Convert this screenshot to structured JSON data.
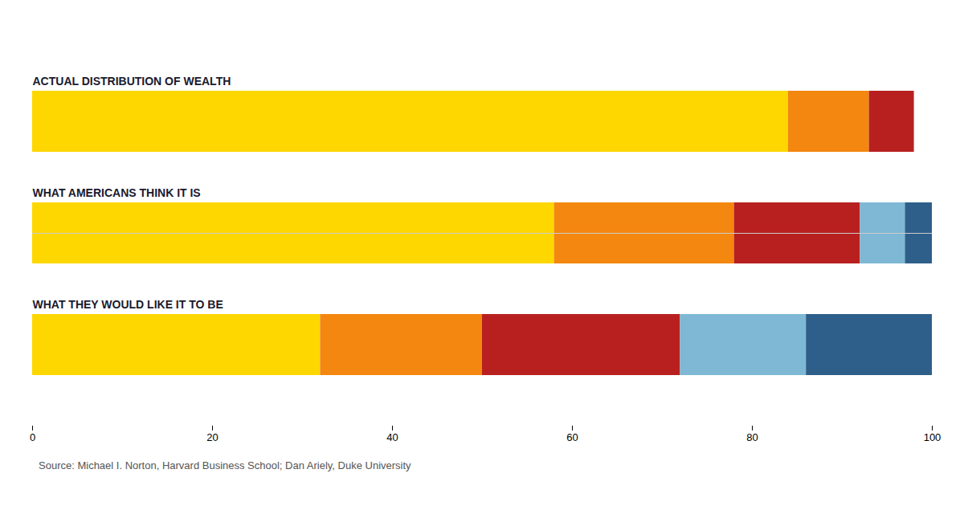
{
  "chart_data": {
    "type": "bar",
    "orientation": "horizontal",
    "stacked": true,
    "categories": [
      "ACTUAL DISTRIBUTION OF WEALTH",
      "WHAT AMERICANS THINK IT IS",
      "WHAT THEY WOULD LIKE IT TO BE"
    ],
    "series": [
      {
        "color": "#FFD700",
        "values": [
          84,
          58,
          32
        ]
      },
      {
        "color": "#F4870F",
        "values": [
          9,
          20,
          18
        ]
      },
      {
        "color": "#B82020",
        "values": [
          5,
          14,
          22
        ]
      },
      {
        "color": "#7EB8D4",
        "values": [
          0,
          5,
          14
        ]
      },
      {
        "color": "#2E5F8A",
        "values": [
          0,
          3,
          14
        ]
      }
    ],
    "xlim": [
      0,
      100
    ],
    "xticks": [
      0,
      20,
      40,
      60,
      80,
      100
    ],
    "grid": false,
    "tick_labels": "x",
    "source": "Source: Michael I. Norton, Harvard Business School; Dan Ariely, Duke University"
  }
}
